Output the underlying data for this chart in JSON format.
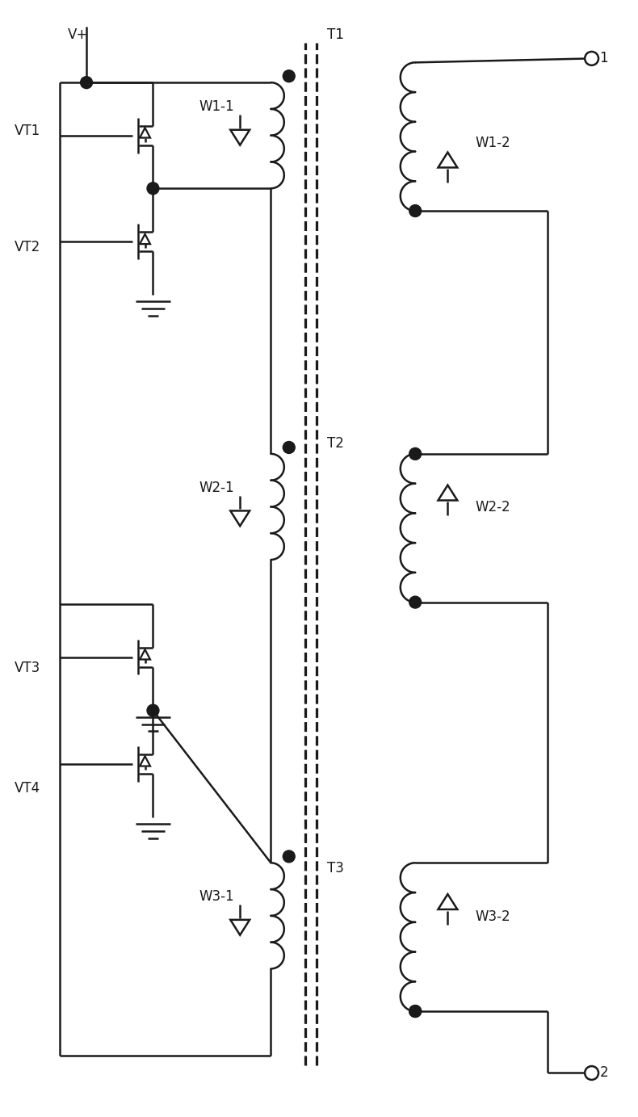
{
  "bg_color": "#ffffff",
  "line_color": "#1a1a1a",
  "line_width": 1.8,
  "fig_width": 7.9,
  "fig_height": 13.83,
  "dpi": 100,
  "labels": {
    "Vplus": [
      0.82,
      13.45,
      "V+"
    ],
    "VT1": [
      0.15,
      12.25,
      "VT1"
    ],
    "VT2": [
      0.15,
      10.8,
      "VT2"
    ],
    "VT3": [
      0.15,
      5.55,
      "VT3"
    ],
    "VT4": [
      0.15,
      4.05,
      "VT4"
    ],
    "T1": [
      4.05,
      13.45,
      "T1"
    ],
    "T2": [
      4.05,
      8.35,
      "T2"
    ],
    "T3": [
      4.05,
      3.05,
      "T3"
    ],
    "W11": [
      2.45,
      12.55,
      "W1-1"
    ],
    "W12": [
      5.9,
      12.1,
      "W1-2"
    ],
    "W21": [
      2.45,
      7.8,
      "W2-1"
    ],
    "W22": [
      5.9,
      7.55,
      "W2-2"
    ],
    "W31": [
      2.45,
      2.7,
      "W3-1"
    ],
    "W32": [
      5.9,
      2.45,
      "W3-2"
    ],
    "out1": [
      7.45,
      13.15,
      "1"
    ],
    "out2": [
      7.45,
      0.5,
      "2"
    ]
  }
}
